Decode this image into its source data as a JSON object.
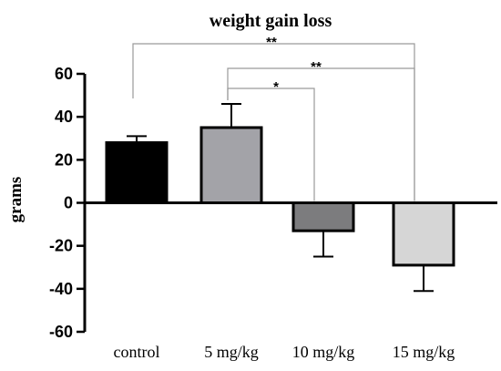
{
  "chart_data": {
    "type": "bar",
    "title": "weight gain loss",
    "xlabel": "",
    "ylabel": "grams",
    "categories": [
      "control",
      "5 mg/kg",
      "10 mg/kg",
      "15 mg/kg"
    ],
    "values": [
      28,
      35,
      -13,
      -29
    ],
    "errors": [
      3,
      11,
      12,
      12
    ],
    "colors": [
      "#000000",
      "#a3a3a8",
      "#7c7c7e",
      "#d6d6d6"
    ],
    "ylim": [
      -60,
      60
    ],
    "yticks": [
      "60",
      "40",
      "20",
      "0",
      "-20",
      "-40",
      "-60"
    ],
    "ytick_values": [
      60,
      40,
      20,
      0,
      -20,
      -40,
      -60
    ],
    "grid": false,
    "significance": [
      {
        "from": 0,
        "to": 3,
        "label": "**"
      },
      {
        "from": 1,
        "to": 3,
        "label": "**"
      },
      {
        "from": 1,
        "to": 2,
        "label": "*"
      }
    ]
  }
}
